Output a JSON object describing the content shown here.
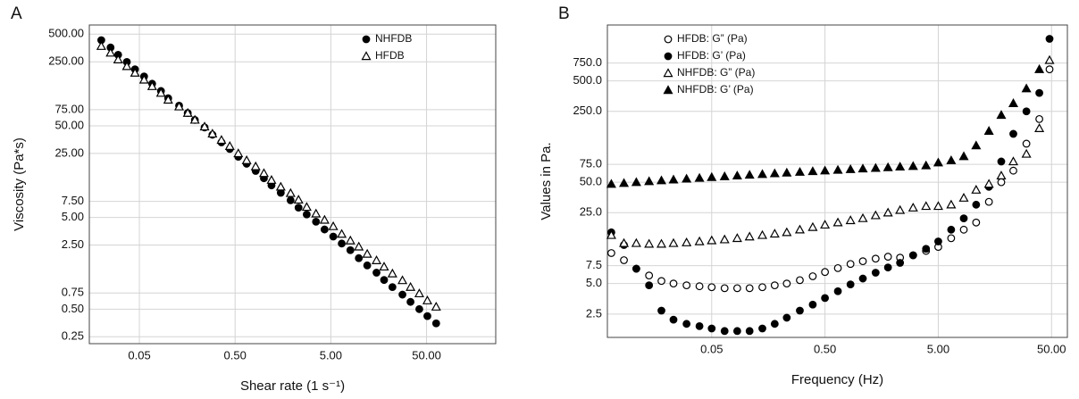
{
  "chart_data": [
    {
      "type": "scatter",
      "panel_label": "A",
      "x_label": "Shear rate (1 s⁻¹)",
      "y_label": "Viscosity (Pa*s)",
      "log_x": true,
      "log_y": true,
      "grid": true,
      "legend": "upper right",
      "xlim": [
        0.015,
        264
      ],
      "ylim": [
        0.21,
        630
      ],
      "xticks": [
        0.05,
        {
          "value": 0.5,
          "label": "0.50"
        },
        {
          "value": 5,
          "label": "5.00"
        },
        {
          "value": 50,
          "label": "50.00"
        }
      ],
      "yticks": [
        0.25,
        {
          "value": 0.5,
          "label": "0.50"
        },
        0.75,
        {
          "value": 2.5,
          "label": "2.50"
        },
        {
          "value": 5,
          "label": "5.00"
        },
        {
          "value": 7.5,
          "label": "7.50"
        },
        {
          "value": 25,
          "label": "25.00"
        },
        {
          "value": 50,
          "label": "50.00"
        },
        {
          "value": 75,
          "label": "75.00"
        },
        {
          "value": 250,
          "label": "250.00"
        },
        {
          "value": 500,
          "label": "500.00"
        }
      ],
      "x": [
        0.02,
        0.025,
        0.03,
        0.037,
        0.045,
        0.056,
        0.068,
        0.084,
        0.1,
        0.13,
        0.16,
        0.19,
        0.24,
        0.29,
        0.36,
        0.44,
        0.54,
        0.66,
        0.82,
        1.0,
        1.2,
        1.5,
        1.9,
        2.3,
        2.8,
        3.5,
        4.3,
        5.3,
        6.5,
        8.0,
        9.8,
        12,
        15,
        18,
        22,
        28,
        34,
        42,
        51,
        63
      ],
      "series": [
        {
          "name": "NHFDB",
          "color": "#000000",
          "marker": "circle",
          "filled": true,
          "values": [
            430,
            358,
            298,
            249,
            207,
            173,
            144,
            120,
            100,
            83,
            69,
            58,
            48,
            40,
            33,
            28,
            23,
            19.3,
            16.1,
            13.4,
            11.2,
            9.3,
            7.7,
            6.4,
            5.4,
            4.5,
            3.7,
            3.1,
            2.6,
            2.2,
            1.8,
            1.5,
            1.25,
            1.04,
            0.87,
            0.72,
            0.6,
            0.5,
            0.42,
            0.35
          ]
        },
        {
          "name": "HFDB",
          "color": "#000000",
          "marker": "triangle",
          "filled": false,
          "values": [
            370,
            313,
            264,
            223,
            189,
            159,
            135,
            114,
            96,
            81,
            69,
            58,
            49,
            41,
            35,
            30,
            25,
            21,
            18,
            15.2,
            12.8,
            10.8,
            9.2,
            7.8,
            6.5,
            5.5,
            4.7,
            4.0,
            3.3,
            2.8,
            2.4,
            2.0,
            1.7,
            1.45,
            1.22,
            1.03,
            0.87,
            0.74,
            0.62,
            0.53
          ]
        }
      ]
    },
    {
      "type": "scatter",
      "panel_label": "B",
      "x_label": "Frequency (Hz)",
      "y_label": "Values in Pa.",
      "log_x": true,
      "log_y": true,
      "grid": true,
      "legend": "upper left",
      "xlim": [
        0.006,
        69
      ],
      "ylim": [
        1.47,
        1780
      ],
      "xticks": [
        0.05,
        {
          "value": 0.5,
          "label": "0.50"
        },
        {
          "value": 5,
          "label": "5.00"
        },
        {
          "value": 50,
          "label": "50.00"
        }
      ],
      "yticks": [
        {
          "value": 2.5,
          "label": "2.5"
        },
        {
          "value": 5,
          "label": "5.0"
        },
        {
          "value": 7.5,
          "label": "7.5"
        },
        {
          "value": 25,
          "label": "25.0"
        },
        {
          "value": 50,
          "label": "50.0"
        },
        {
          "value": 75,
          "label": "75.0"
        },
        {
          "value": 250,
          "label": "250.0"
        },
        {
          "value": 500,
          "label": "500.0"
        },
        {
          "value": 750,
          "label": "750.0"
        }
      ],
      "x": [
        0.0065,
        0.0084,
        0.0108,
        0.014,
        0.018,
        0.023,
        0.03,
        0.039,
        0.05,
        0.065,
        0.084,
        0.108,
        0.14,
        0.18,
        0.23,
        0.3,
        0.39,
        0.5,
        0.65,
        0.84,
        1.08,
        1.4,
        1.8,
        2.3,
        3.0,
        3.9,
        5.0,
        6.5,
        8.4,
        10.8,
        14,
        18,
        23,
        30,
        39,
        48
      ],
      "series": [
        {
          "name": "HFDB: G” (Pa)",
          "color": "#000000",
          "marker": "circle",
          "filled": false,
          "values": [
            10,
            8.5,
            7,
            6,
            5.3,
            5.0,
            4.8,
            4.7,
            4.6,
            4.5,
            4.5,
            4.5,
            4.6,
            4.8,
            5.0,
            5.4,
            5.9,
            6.5,
            7.1,
            7.8,
            8.3,
            8.8,
            9.2,
            9.0,
            9.5,
            10.5,
            11.5,
            14,
            17,
            20,
            32,
            50,
            65,
            120,
            210,
            650
          ]
        },
        {
          "name": "HFDB: G’ (Pa)",
          "color": "#000000",
          "marker": "circle",
          "filled": true,
          "values": [
            16,
            12,
            7,
            4.8,
            2.7,
            2.2,
            2.0,
            1.9,
            1.8,
            1.7,
            1.7,
            1.7,
            1.8,
            2.0,
            2.3,
            2.7,
            3.1,
            3.6,
            4.2,
            4.9,
            5.6,
            6.4,
            7.2,
            8.0,
            9.5,
            11,
            13,
            17,
            22,
            30,
            45,
            80,
            150,
            250,
            380,
            1300
          ]
        },
        {
          "name": "NHFDB: G” (Pa)",
          "color": "#000000",
          "marker": "triangle",
          "filled": false,
          "values": [
            15,
            12.5,
            12.5,
            12.3,
            12.3,
            12.5,
            12.7,
            13,
            13.3,
            13.6,
            14,
            14.5,
            15,
            15.5,
            16,
            17,
            18,
            19,
            20,
            21,
            22,
            23.5,
            25,
            26.5,
            28,
            29,
            29,
            30,
            35,
            42,
            48,
            58,
            80,
            95,
            170,
            800
          ]
        },
        {
          "name": "NHFDB: G’ (Pa)",
          "color": "#000000",
          "marker": "triangle",
          "filled": true,
          "values": [
            48,
            49,
            50,
            51,
            52,
            53,
            54,
            55,
            56,
            57,
            58,
            59,
            60,
            61,
            62,
            63,
            64,
            65,
            66,
            67,
            68,
            69,
            70,
            71,
            72,
            73,
            78,
            82,
            90,
            115,
            160,
            230,
            300,
            420,
            650,
            null
          ]
        }
      ]
    }
  ]
}
